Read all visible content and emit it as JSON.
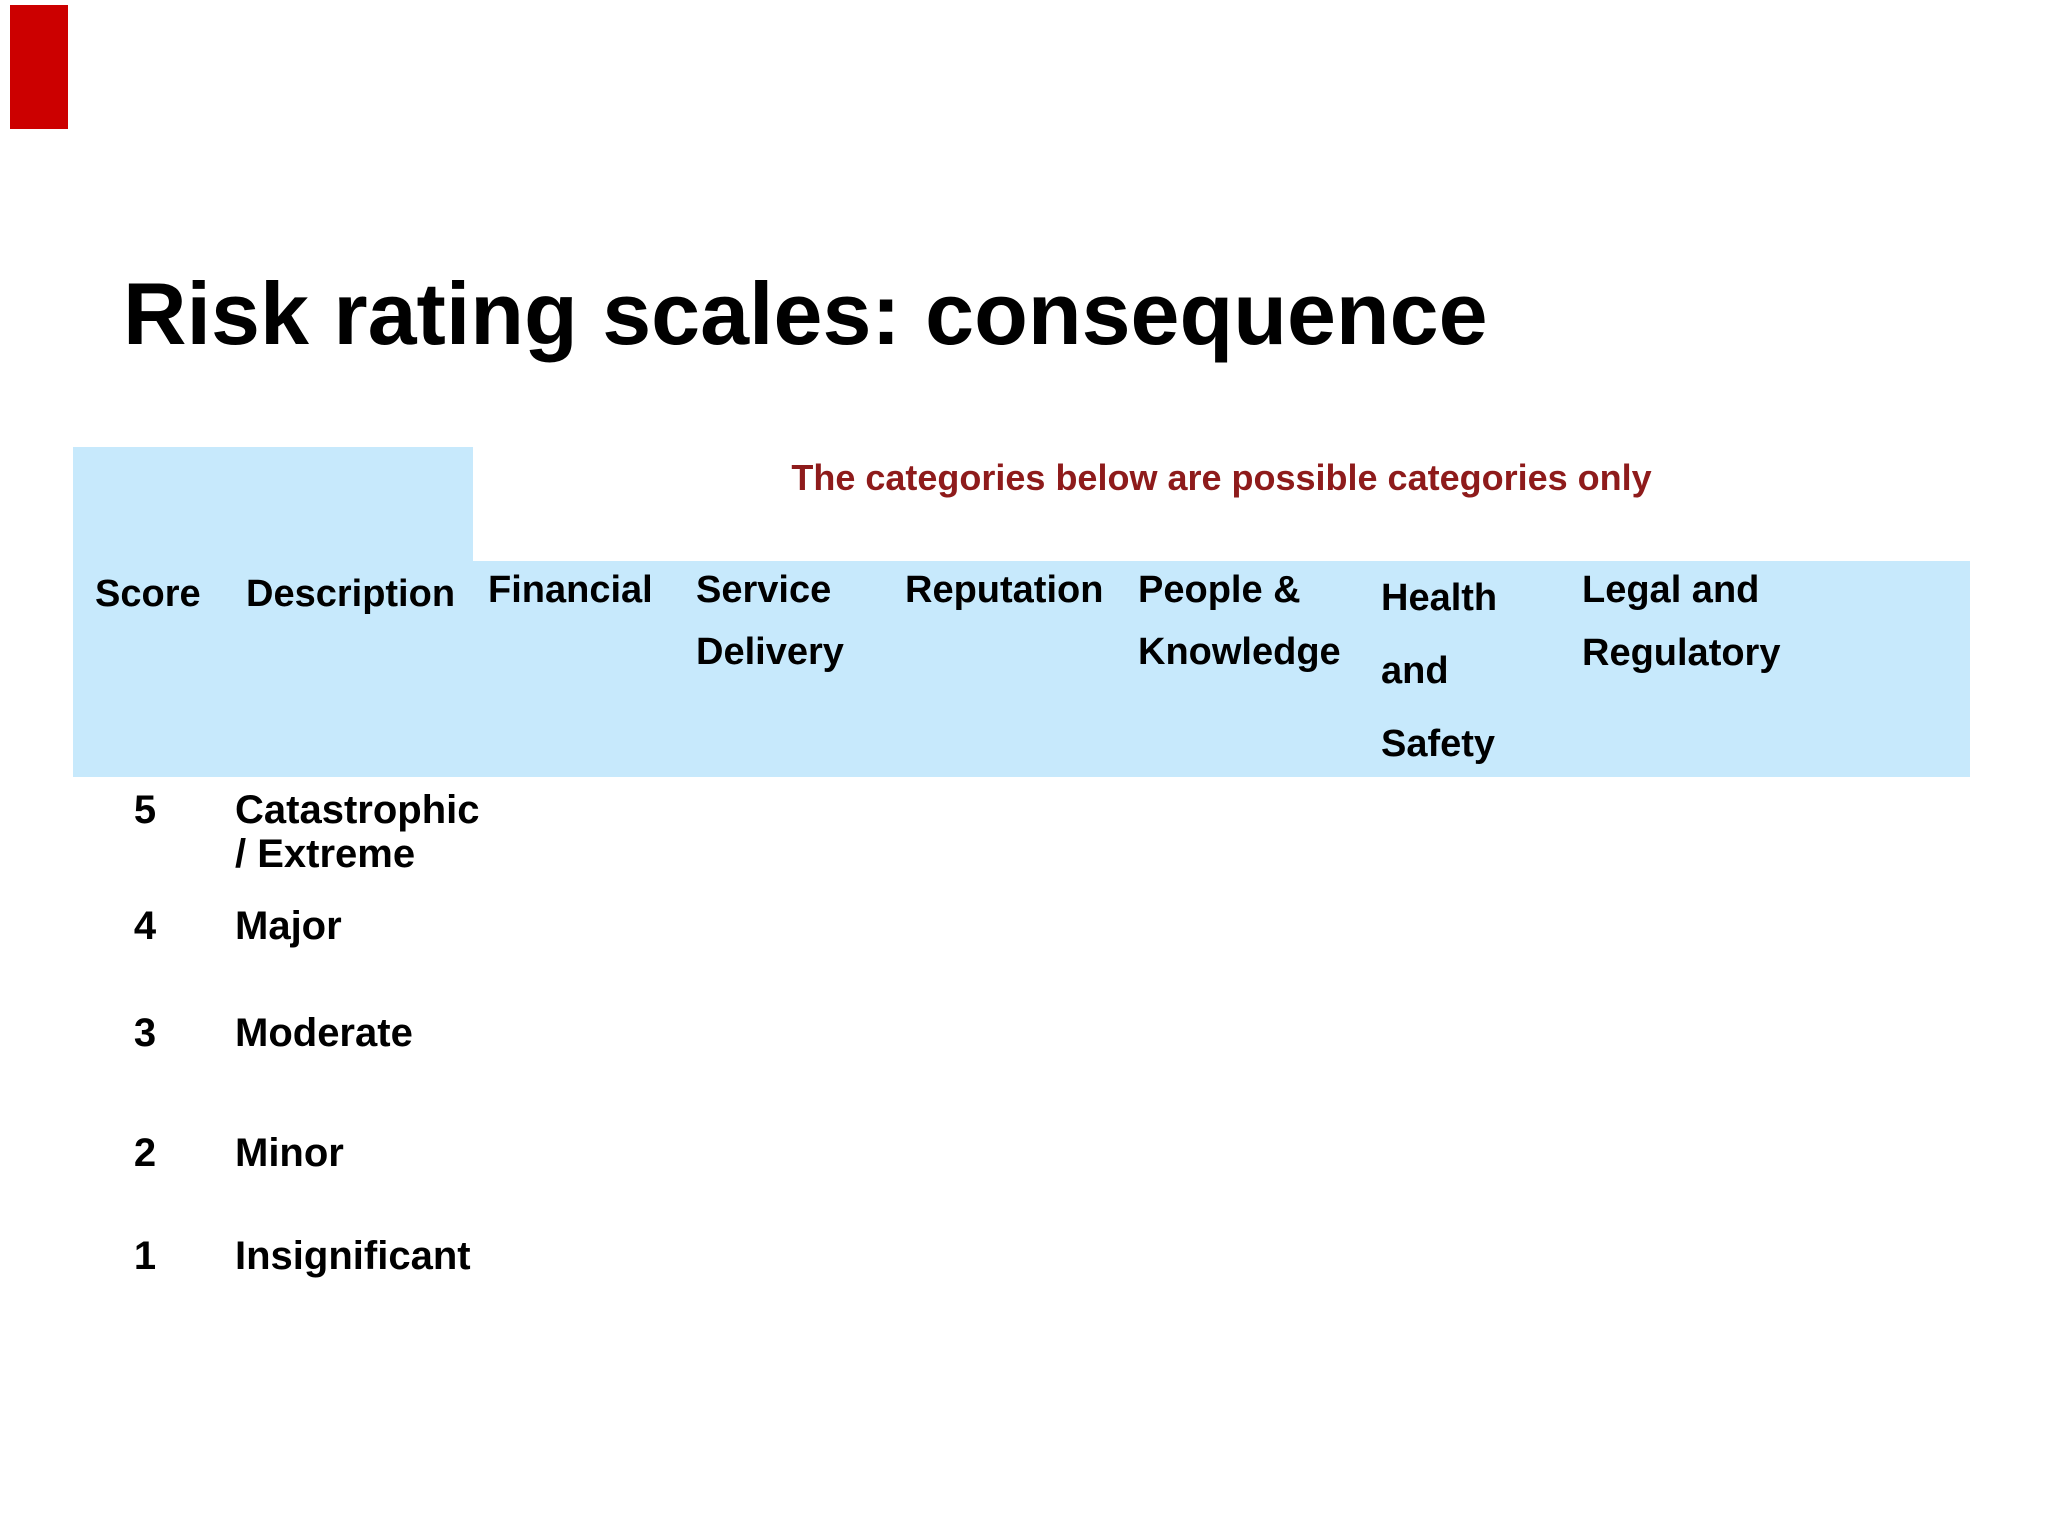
{
  "slide": {
    "title": "Risk rating scales: consequence",
    "note": "The categories below are possible categories only",
    "colors": {
      "accent_bar": "#cc0000",
      "table_band": "#c7e9fc",
      "note_text": "#8e1b1b",
      "body_text": "#000000"
    }
  },
  "table": {
    "row_headers": [
      {
        "label": "Score"
      },
      {
        "label": "Description"
      }
    ],
    "category_headers": [
      {
        "id": "financial",
        "lines": [
          "Financial"
        ]
      },
      {
        "id": "service-delivery",
        "lines": [
          "Service",
          "Delivery"
        ]
      },
      {
        "id": "reputation",
        "lines": [
          "Reputation"
        ]
      },
      {
        "id": "people-knowledge",
        "lines": [
          "People &",
          "Knowledge"
        ]
      },
      {
        "id": "health-safety",
        "lines": [
          "Health",
          "and",
          "Safety"
        ]
      },
      {
        "id": "legal-regulatory",
        "lines": [
          "Legal and",
          "Regulatory"
        ]
      }
    ],
    "rows": [
      {
        "score": "5",
        "description": [
          "Catastrophic",
          "/ Extreme"
        ]
      },
      {
        "score": "4",
        "description": [
          "Major"
        ]
      },
      {
        "score": "3",
        "description": [
          "Moderate"
        ]
      },
      {
        "score": "2",
        "description": [
          "Minor"
        ]
      },
      {
        "score": "1",
        "description": [
          "Insignificant"
        ]
      }
    ]
  }
}
